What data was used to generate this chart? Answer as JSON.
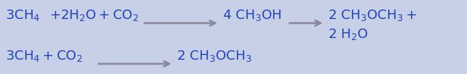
{
  "background_color": "#c8d0e8",
  "text_color": "#2244bb",
  "fig_width": 6.82,
  "fig_height": 1.09,
  "dpi": 100,
  "fontsize": 14,
  "arrow_color": "#888899",
  "arrow_lw": 2.0
}
